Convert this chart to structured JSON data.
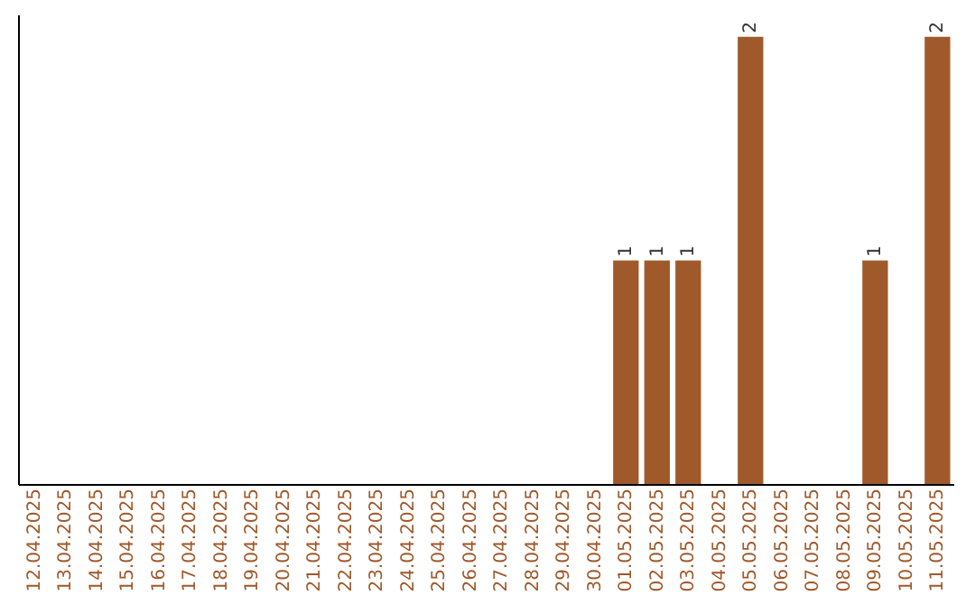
{
  "chart_data": {
    "type": "bar",
    "categories": [
      "12.04.2025",
      "13.04.2025",
      "14.04.2025",
      "15.04.2025",
      "16.04.2025",
      "17.04.2025",
      "18.04.2025",
      "19.04.2025",
      "20.04.2025",
      "21.04.2025",
      "22.04.2025",
      "23.04.2025",
      "24.04.2025",
      "25.04.2025",
      "26.04.2025",
      "27.04.2025",
      "28.04.2025",
      "29.04.2025",
      "30.04.2025",
      "01.05.2025",
      "02.05.2025",
      "03.05.2025",
      "04.05.2025",
      "05.05.2025",
      "06.05.2025",
      "07.05.2025",
      "08.05.2025",
      "09.05.2025",
      "10.05.2025",
      "11.05.2025"
    ],
    "values": [
      null,
      null,
      null,
      null,
      null,
      null,
      null,
      null,
      null,
      null,
      null,
      null,
      null,
      null,
      null,
      null,
      null,
      null,
      null,
      1,
      1,
      1,
      null,
      2,
      null,
      null,
      null,
      1,
      null,
      2
    ],
    "color": "#a0592a",
    "data_labels": true,
    "tick_labels": "x",
    "grid": false
  }
}
